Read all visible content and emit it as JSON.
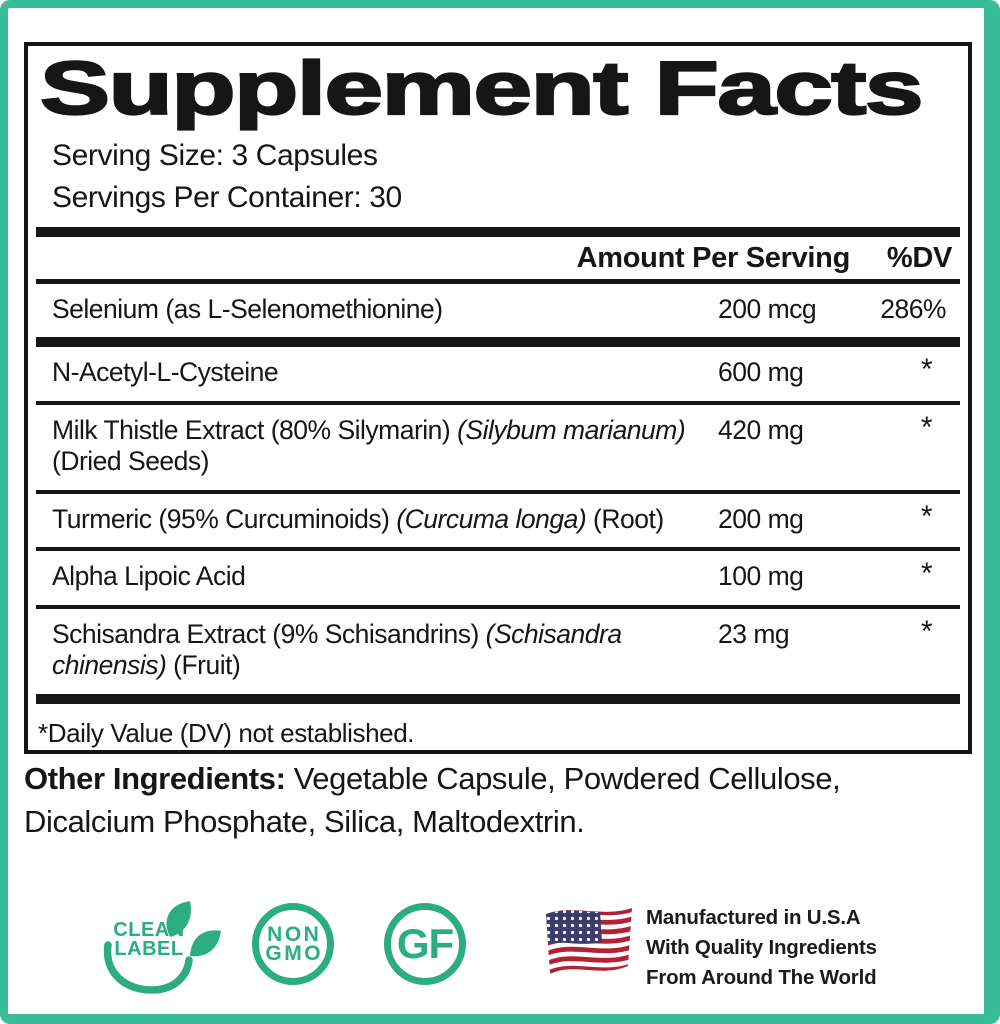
{
  "panel": {
    "title": "Supplement Facts",
    "serving_size": "Serving Size: 3 Capsules",
    "servings_per_container": "Servings Per Container: 30",
    "header": {
      "amount": "Amount Per Serving",
      "dv": "%DV"
    },
    "rows": [
      {
        "name_parts": [
          {
            "t": "Selenium (as L-Selenomethionine)"
          }
        ],
        "amount": "200 mcg",
        "dv": "286%",
        "divider": "thick"
      },
      {
        "name_parts": [
          {
            "t": "N-Acetyl-L-Cysteine"
          }
        ],
        "amount": "600 mg",
        "dv": "*",
        "divider": "thin"
      },
      {
        "name_parts": [
          {
            "t": "Milk Thistle Extract (80% Silymarin) "
          },
          {
            "t": "(Silybum marianum)",
            "i": true
          },
          {
            "t": " (Dried Seeds)"
          }
        ],
        "amount": "420 mg",
        "dv": "*",
        "divider": "thin"
      },
      {
        "name_parts": [
          {
            "t": "Turmeric (95% Curcuminoids) "
          },
          {
            "t": "(Curcuma longa)",
            "i": true
          },
          {
            "t": " (Root)"
          }
        ],
        "amount": "200 mg",
        "dv": "*",
        "divider": "thin"
      },
      {
        "name_parts": [
          {
            "t": "Alpha Lipoic Acid"
          }
        ],
        "amount": "100 mg",
        "dv": "*",
        "divider": "thin"
      },
      {
        "name_parts": [
          {
            "t": "Schisandra Extract (9% Schisandrins) "
          },
          {
            "t": "(Schisandra chinensis)",
            "i": true
          },
          {
            "t": " (Fruit)"
          }
        ],
        "amount": "23 mg",
        "dv": "*",
        "divider": "thick"
      }
    ],
    "footnote": "*Daily Value (DV) not established."
  },
  "other_ingredients": {
    "label": "Other Ingredients:",
    "text": "Vegetable Capsule, Powdered Cellulose, Dicalcium Phosphate, Silica, Maltodextrin."
  },
  "badges": {
    "clean_label": {
      "line1": "CLEAN",
      "line2": "LABEL"
    },
    "non_gmo": {
      "line1": "NON",
      "line2": "GMO"
    },
    "gluten_free": "GF",
    "made_in_usa": [
      "Manufactured in U.S.A",
      "With Quality Ingredients",
      "From Around The World"
    ]
  },
  "colors": {
    "frame_teal": "#38bd97",
    "badge_green": "#2cac81",
    "text_black": "#161616",
    "flag_navy": "#3c3b6e",
    "flag_red": "#b22234"
  }
}
